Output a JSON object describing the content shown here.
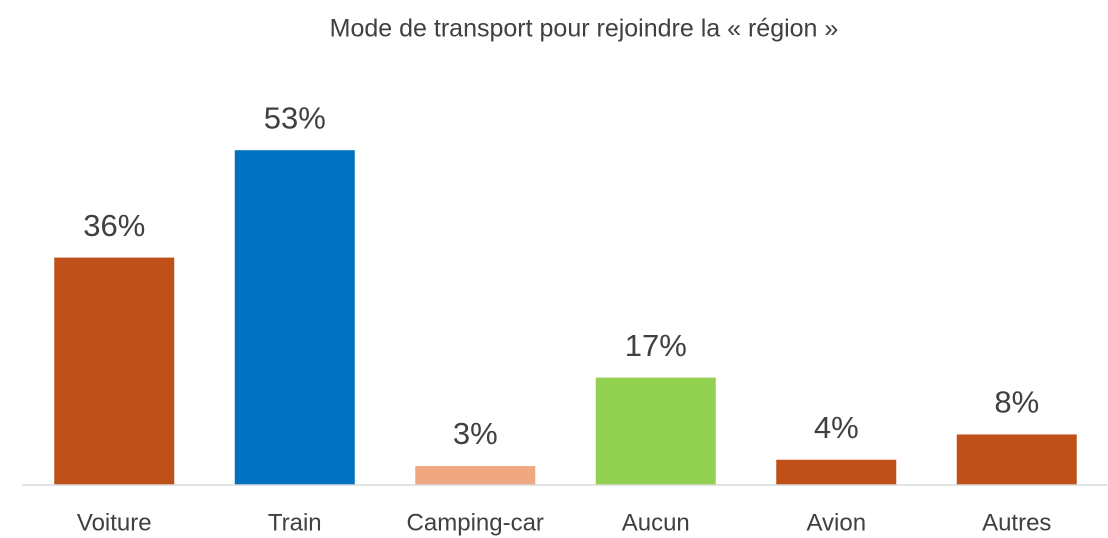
{
  "chart_data": {
    "type": "bar",
    "title": "Mode de transport pour rejoindre la « région »",
    "categories": [
      "Voiture",
      "Train",
      "Camping-car",
      "Aucun",
      "Avion",
      "Autres"
    ],
    "values": [
      36,
      53,
      3,
      17,
      4,
      8
    ],
    "value_labels": [
      "36%",
      "53%",
      "3%",
      "17%",
      "4%",
      "8%"
    ],
    "colors": [
      "#c0501a",
      "#0070c0",
      "#f0a882",
      "#92d050",
      "#c0501a",
      "#c0501a"
    ],
    "ylim": [
      0,
      60
    ]
  }
}
